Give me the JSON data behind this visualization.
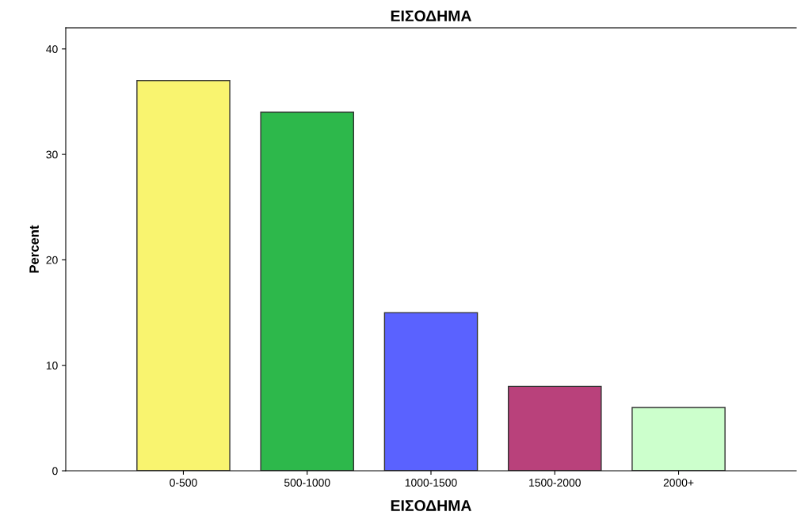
{
  "chart_data": {
    "type": "bar",
    "title": "ΕΙΣΟΔΗΜΑ",
    "xlabel": "ΕΙΣΟΔΗΜΑ",
    "ylabel": "Percent",
    "categories": [
      "0-500",
      "500-1000",
      "1000-1500",
      "1500-2000",
      "2000+"
    ],
    "values": [
      37,
      34,
      15,
      8,
      6
    ],
    "colors": [
      "#f9f46f",
      "#2db84b",
      "#5a62ff",
      "#b9417b",
      "#ccffcc"
    ],
    "ylim": [
      0,
      42
    ],
    "yticks": [
      0,
      10,
      20,
      30,
      40
    ],
    "grid": false,
    "legend": false
  }
}
